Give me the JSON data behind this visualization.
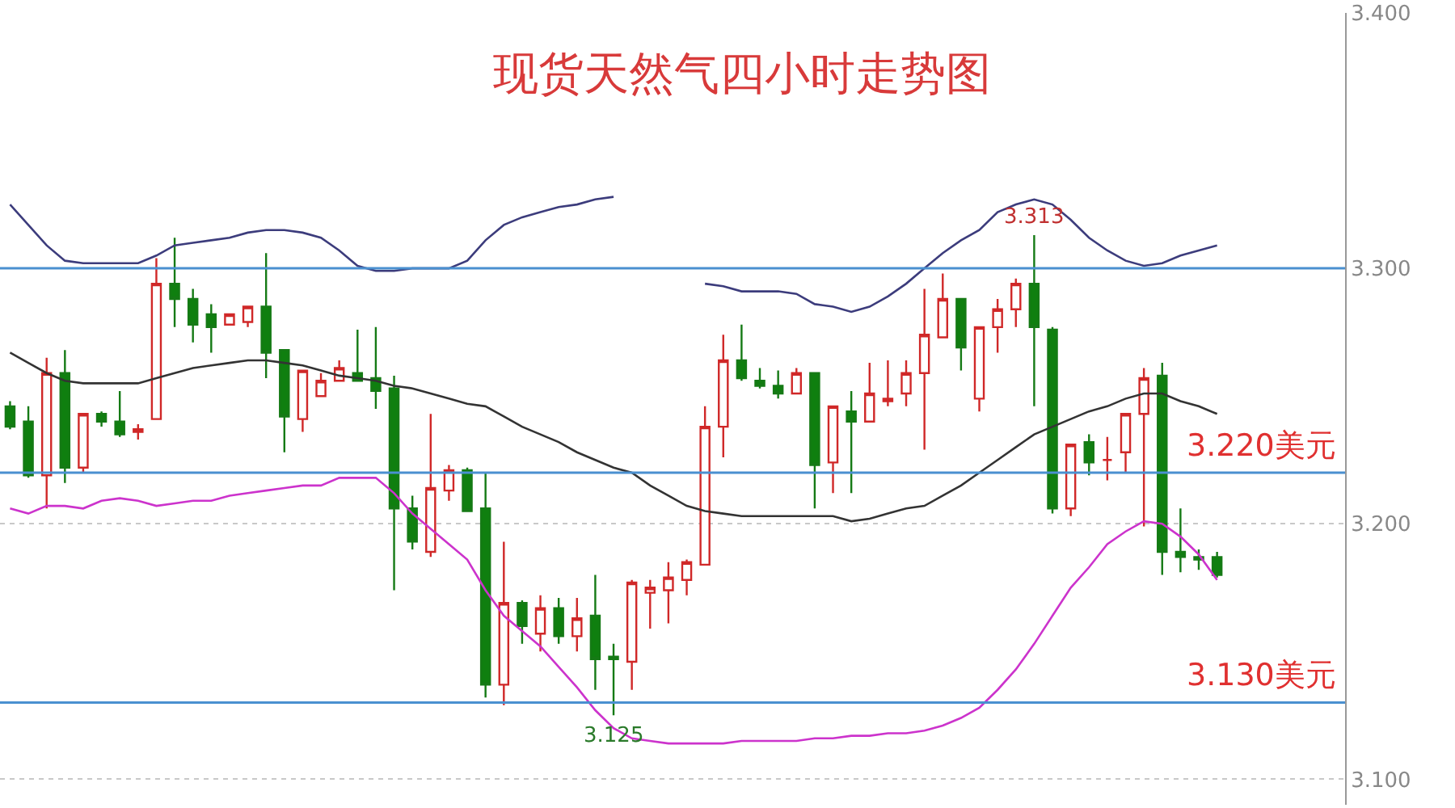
{
  "chart_data": {
    "type": "candlestick",
    "title": "现货天然气四小时走势图",
    "categories": [
      null,
      null,
      null,
      null,
      null,
      null,
      null,
      null,
      null,
      null,
      null,
      null,
      null,
      null,
      null,
      null,
      null,
      null,
      null,
      null,
      null,
      null,
      null,
      null,
      null,
      null,
      null,
      null,
      null,
      null,
      null,
      null,
      null,
      null,
      null,
      null,
      null,
      null,
      null,
      null,
      null,
      null,
      null,
      null,
      null,
      null,
      null,
      null,
      null,
      null,
      null,
      null,
      null,
      null,
      null,
      null,
      null,
      null,
      null,
      null,
      null,
      null,
      null,
      null,
      null,
      null,
      null
    ],
    "ohlc": [
      [
        3.246,
        3.248,
        3.237,
        3.238
      ],
      [
        3.24,
        3.246,
        3.218,
        3.219
      ],
      [
        3.219,
        3.265,
        3.206,
        3.259
      ],
      [
        3.259,
        3.268,
        3.216,
        3.222
      ],
      [
        3.222,
        3.243,
        3.22,
        3.243
      ],
      [
        3.243,
        3.244,
        3.238,
        3.24
      ],
      [
        3.24,
        3.252,
        3.234,
        3.235
      ],
      [
        3.236,
        3.239,
        3.233,
        3.237
      ],
      [
        3.241,
        3.304,
        3.241,
        3.294
      ],
      [
        3.294,
        3.312,
        3.277,
        3.288
      ],
      [
        3.288,
        3.292,
        3.271,
        3.278
      ],
      [
        3.282,
        3.286,
        3.267,
        3.277
      ],
      [
        3.278,
        3.282,
        3.278,
        3.282
      ],
      [
        3.279,
        3.285,
        3.277,
        3.285
      ],
      [
        3.285,
        3.306,
        3.257,
        3.267
      ],
      [
        3.268,
        3.268,
        3.228,
        3.242
      ],
      [
        3.241,
        3.26,
        3.236,
        3.26
      ],
      [
        3.25,
        3.259,
        3.25,
        3.256
      ],
      [
        3.256,
        3.264,
        3.256,
        3.261
      ],
      [
        3.259,
        3.276,
        3.256,
        3.256
      ],
      [
        3.257,
        3.277,
        3.245,
        3.252
      ],
      [
        3.253,
        3.258,
        3.174,
        3.206
      ],
      [
        3.206,
        3.211,
        3.19,
        3.193
      ],
      [
        3.189,
        3.243,
        3.187,
        3.214
      ],
      [
        3.213,
        3.223,
        3.209,
        3.221
      ],
      [
        3.221,
        3.222,
        3.205,
        3.205
      ],
      [
        3.206,
        3.22,
        3.132,
        3.137
      ],
      [
        3.137,
        3.193,
        3.129,
        3.169
      ],
      [
        3.169,
        3.17,
        3.153,
        3.16
      ],
      [
        3.157,
        3.172,
        3.15,
        3.167
      ],
      [
        3.167,
        3.171,
        3.153,
        3.156
      ],
      [
        3.156,
        3.171,
        3.15,
        3.163
      ],
      [
        3.164,
        3.18,
        3.135,
        3.147
      ],
      [
        3.148,
        3.153,
        3.125,
        3.147
      ],
      [
        3.146,
        3.178,
        3.135,
        3.177
      ],
      [
        3.173,
        3.178,
        3.159,
        3.175
      ],
      [
        3.174,
        3.185,
        3.161,
        3.179
      ],
      [
        3.178,
        3.186,
        3.172,
        3.185
      ],
      [
        3.184,
        3.246,
        3.184,
        3.238
      ],
      [
        3.238,
        3.274,
        3.226,
        3.264
      ],
      [
        3.264,
        3.278,
        3.256,
        3.257
      ],
      [
        3.256,
        3.261,
        3.253,
        3.254
      ],
      [
        3.254,
        3.26,
        3.249,
        3.251
      ],
      [
        3.251,
        3.261,
        3.251,
        3.259
      ],
      [
        3.259,
        3.259,
        3.206,
        3.223
      ],
      [
        3.224,
        3.246,
        3.212,
        3.246
      ],
      [
        3.244,
        3.252,
        3.212,
        3.24
      ],
      [
        3.24,
        3.263,
        3.24,
        3.251
      ],
      [
        3.248,
        3.264,
        3.246,
        3.249
      ],
      [
        3.251,
        3.264,
        3.246,
        3.259
      ],
      [
        3.259,
        3.292,
        3.229,
        3.274
      ],
      [
        3.273,
        3.298,
        3.273,
        3.288
      ],
      [
        3.288,
        3.288,
        3.26,
        3.269
      ],
      [
        3.249,
        3.277,
        3.244,
        3.277
      ],
      [
        3.277,
        3.288,
        3.267,
        3.284
      ],
      [
        3.284,
        3.296,
        3.277,
        3.294
      ],
      [
        3.294,
        3.313,
        3.246,
        3.277
      ],
      [
        3.276,
        3.277,
        3.204,
        3.206
      ],
      [
        3.206,
        3.231,
        3.203,
        3.231
      ],
      [
        3.232,
        3.235,
        3.219,
        3.224
      ],
      [
        3.225,
        3.234,
        3.217,
        3.225
      ],
      [
        3.228,
        3.243,
        3.22,
        3.243
      ],
      [
        3.243,
        3.261,
        3.199,
        3.257
      ],
      [
        3.258,
        3.263,
        3.18,
        3.189
      ],
      [
        3.189,
        3.206,
        3.181,
        3.187
      ],
      [
        3.187,
        3.19,
        3.182,
        3.186
      ],
      [
        3.187,
        3.189,
        3.179,
        3.18
      ]
    ],
    "series": [
      {
        "type": "line",
        "color": "#3c3c7c",
        "values": [
          3.325,
          3.317,
          3.309,
          3.303,
          3.302,
          3.302,
          3.302,
          3.302,
          3.305,
          3.309,
          3.31,
          3.311,
          3.312,
          3.314,
          3.315,
          3.315,
          3.314,
          3.312,
          3.307,
          3.301,
          3.299,
          3.299,
          3.3,
          3.3,
          3.3,
          3.303,
          3.311,
          3.317,
          3.32,
          3.322,
          3.324,
          3.325,
          3.327,
          3.328,
          null,
          null,
          null,
          null,
          3.294,
          3.293,
          3.291,
          3.291,
          3.291,
          3.29,
          3.286,
          3.285,
          3.283,
          3.285,
          3.289,
          3.294,
          3.3,
          3.306,
          3.311,
          3.315,
          3.322,
          3.325,
          3.327,
          3.325,
          3.319,
          3.312,
          3.307,
          3.303,
          3.301,
          3.302,
          3.305,
          3.307,
          3.309
        ]
      },
      {
        "type": "line",
        "color": "#333333",
        "values": [
          3.267,
          3.263,
          3.259,
          3.256,
          3.255,
          3.255,
          3.255,
          3.255,
          3.257,
          3.259,
          3.261,
          3.262,
          3.263,
          3.264,
          3.264,
          3.263,
          3.262,
          3.26,
          3.258,
          3.257,
          3.256,
          3.254,
          3.253,
          3.251,
          3.249,
          3.247,
          3.246,
          3.242,
          3.238,
          3.235,
          3.232,
          3.228,
          3.225,
          3.222,
          3.22,
          3.215,
          3.211,
          3.207,
          3.205,
          3.204,
          3.203,
          3.203,
          3.203,
          3.203,
          3.203,
          3.203,
          3.201,
          3.202,
          3.204,
          3.206,
          3.207,
          3.211,
          3.215,
          3.22,
          3.225,
          3.23,
          3.235,
          3.238,
          3.241,
          3.244,
          3.246,
          3.249,
          3.251,
          3.251,
          3.248,
          3.246,
          3.243
        ]
      },
      {
        "type": "line",
        "color": "#cc33cc",
        "values": [
          3.206,
          3.204,
          3.207,
          3.207,
          3.206,
          3.209,
          3.21,
          3.209,
          3.207,
          3.208,
          3.209,
          3.209,
          3.211,
          3.212,
          3.213,
          3.214,
          3.215,
          3.215,
          3.218,
          3.218,
          3.218,
          3.212,
          3.204,
          3.198,
          3.192,
          3.186,
          3.174,
          3.164,
          3.158,
          3.152,
          3.144,
          3.136,
          3.127,
          3.12,
          3.116,
          3.115,
          3.114,
          3.114,
          3.114,
          3.114,
          3.115,
          3.115,
          3.115,
          3.115,
          3.116,
          3.116,
          3.117,
          3.117,
          3.118,
          3.118,
          3.119,
          3.121,
          3.124,
          3.128,
          3.135,
          3.143,
          3.153,
          3.164,
          3.175,
          3.183,
          3.192,
          3.197,
          3.201,
          3.2,
          3.195,
          3.188,
          3.178
        ]
      }
    ],
    "ylim": [
      3.09,
      3.4
    ],
    "yticks": [
      {
        "value": 3.1,
        "label": "3.100"
      },
      {
        "value": 3.2,
        "label": "3.200"
      },
      {
        "value": 3.3,
        "label": "3.300"
      },
      {
        "value": 3.4,
        "label": "3.400"
      }
    ],
    "grid": "y",
    "ref_lines": [
      {
        "axis": "y",
        "value": 3.3,
        "color": "#4a90d0"
      },
      {
        "axis": "y",
        "value": 3.22,
        "label": "3.220美元",
        "color": "#4a90d0"
      },
      {
        "axis": "y",
        "value": 3.13,
        "label": "3.130美元",
        "color": "#4a90d0"
      }
    ],
    "annotations": [
      {
        "text": "3.313",
        "y": 3.313
      },
      {
        "text": "3.125",
        "y": 3.125
      }
    ]
  }
}
